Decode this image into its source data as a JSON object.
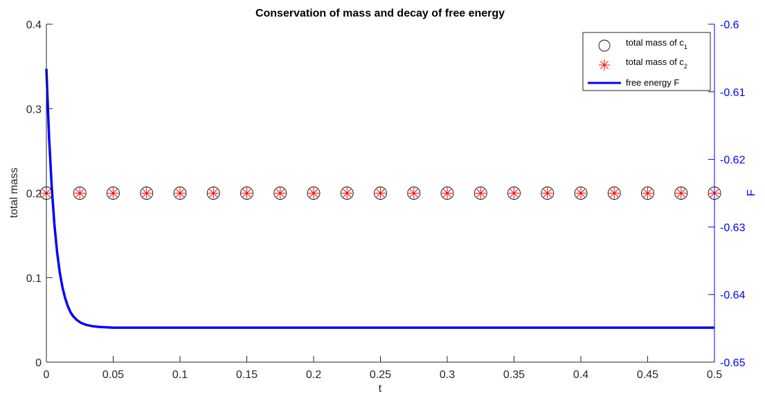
{
  "chart_data": {
    "type": "line",
    "title": "Conservation of mass and decay of free energy",
    "xlabel": "t",
    "ylabel_left": "total mass",
    "ylabel_right": "F",
    "xlim": [
      0,
      0.5
    ],
    "ylim_left": [
      0,
      0.4
    ],
    "ylim_right": [
      -0.65,
      -0.6
    ],
    "x_ticks": [
      "0",
      "0.05",
      "0.1",
      "0.15",
      "0.2",
      "0.25",
      "0.3",
      "0.35",
      "0.4",
      "0.45",
      "0.5"
    ],
    "y_left_ticks": [
      "0",
      "0.1",
      "0.2",
      "0.3",
      "0.4"
    ],
    "y_right_ticks": [
      "-0.65",
      "-0.64",
      "-0.63",
      "-0.62",
      "-0.61",
      "-0.6"
    ],
    "grid": false,
    "legend_position": "top-right",
    "colors": {
      "mass_c1": "#000000",
      "mass_c2": "#ff0000",
      "free_energy": "#0000ff",
      "axis": "#262626",
      "right_axis": "#0000ff"
    },
    "series": [
      {
        "name": "total mass of c",
        "subscript": "1",
        "axis": "left",
        "marker": "circle",
        "x": [
          0,
          0.025,
          0.05,
          0.075,
          0.1,
          0.125,
          0.15,
          0.175,
          0.2,
          0.225,
          0.25,
          0.275,
          0.3,
          0.325,
          0.35,
          0.375,
          0.4,
          0.425,
          0.45,
          0.475,
          0.5
        ],
        "values": [
          0.2,
          0.2,
          0.2,
          0.2,
          0.2,
          0.2,
          0.2,
          0.2,
          0.2,
          0.2,
          0.2,
          0.2,
          0.2,
          0.2,
          0.2,
          0.2,
          0.2,
          0.2,
          0.2,
          0.2,
          0.2
        ]
      },
      {
        "name": "total mass of c",
        "subscript": "2",
        "axis": "left",
        "marker": "asterisk",
        "x": [
          0,
          0.025,
          0.05,
          0.075,
          0.1,
          0.125,
          0.15,
          0.175,
          0.2,
          0.225,
          0.25,
          0.275,
          0.3,
          0.325,
          0.35,
          0.375,
          0.4,
          0.425,
          0.45,
          0.475,
          0.5
        ],
        "values": [
          0.2,
          0.2,
          0.2,
          0.2,
          0.2,
          0.2,
          0.2,
          0.2,
          0.2,
          0.2,
          0.2,
          0.2,
          0.2,
          0.2,
          0.2,
          0.2,
          0.2,
          0.2,
          0.2,
          0.2,
          0.2
        ]
      },
      {
        "name": "free energy F",
        "axis": "right",
        "marker": "none",
        "x": [
          0,
          0.002,
          0.004,
          0.006,
          0.008,
          0.01,
          0.012,
          0.014,
          0.016,
          0.018,
          0.02,
          0.023,
          0.026,
          0.03,
          0.035,
          0.04,
          0.05,
          0.06,
          0.1,
          0.2,
          0.3,
          0.4,
          0.5
        ],
        "values": [
          -0.6066,
          -0.6167,
          -0.6241,
          -0.6296,
          -0.6337,
          -0.6367,
          -0.6389,
          -0.6405,
          -0.6417,
          -0.6426,
          -0.6432,
          -0.6438,
          -0.6442,
          -0.6445,
          -0.6447,
          -0.6448,
          -0.6449,
          -0.6449,
          -0.6449,
          -0.6449,
          -0.6449,
          -0.6449,
          -0.6449
        ]
      }
    ]
  }
}
